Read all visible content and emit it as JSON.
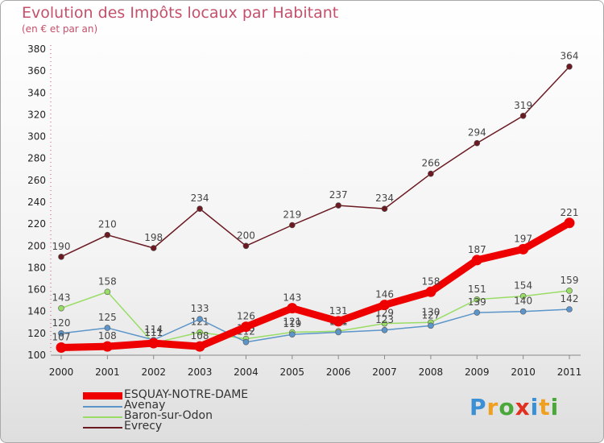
{
  "chart_data": {
    "type": "line",
    "title": "Evolution des Impôts locaux par Habitant",
    "subtitle": "(en € et par an)",
    "categories": [
      "2000",
      "2001",
      "2002",
      "2003",
      "2004",
      "2005",
      "2006",
      "2007",
      "2008",
      "2009",
      "2010",
      "2011"
    ],
    "ylim": [
      100,
      380
    ],
    "yticks": [
      100,
      120,
      140,
      160,
      180,
      200,
      220,
      240,
      260,
      280,
      300,
      320,
      340,
      360,
      380
    ],
    "grid": false,
    "legend_position": "bottom-left",
    "series": [
      {
        "name": "Evrecy",
        "color": "#6b1a22",
        "values": [
          190,
          210,
          198,
          234,
          200,
          219,
          237,
          234,
          266,
          294,
          319,
          364
        ]
      },
      {
        "name": "Baron-sur-Odon",
        "color": "#99dd66",
        "values": [
          143,
          158,
          111,
          121,
          115,
          121,
          122,
          129,
          130,
          151,
          154,
          159
        ]
      },
      {
        "name": "Avenay",
        "color": "#5b95c9",
        "values": [
          120,
          125,
          114,
          133,
          112,
          119,
          121,
          123,
          127,
          139,
          140,
          142
        ]
      },
      {
        "name": "ESQUAY-NOTRE-DAME",
        "color": "#ee0000",
        "values": [
          107,
          108,
          111,
          108,
          126,
          143,
          131,
          146,
          158,
          187,
          197,
          221
        ]
      }
    ],
    "legend_order": [
      "ESQUAY-NOTRE-DAME",
      "Avenay",
      "Baron-sur-Odon",
      "Evrecy"
    ]
  },
  "logo_text": "Proxiti"
}
